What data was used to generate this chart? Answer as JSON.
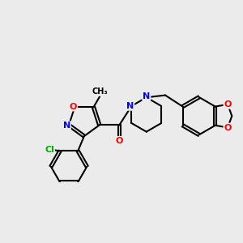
{
  "bg_color": "#ebebeb",
  "bond_color": "#000000",
  "bond_width": 1.5,
  "atom_colors": {
    "N": "#0000ff",
    "O": "#ff0000",
    "Cl": "#00b000",
    "C": "#000000"
  },
  "font_size": 8.0,
  "fig_size": [
    3.0,
    3.0
  ],
  "dpi": 100
}
